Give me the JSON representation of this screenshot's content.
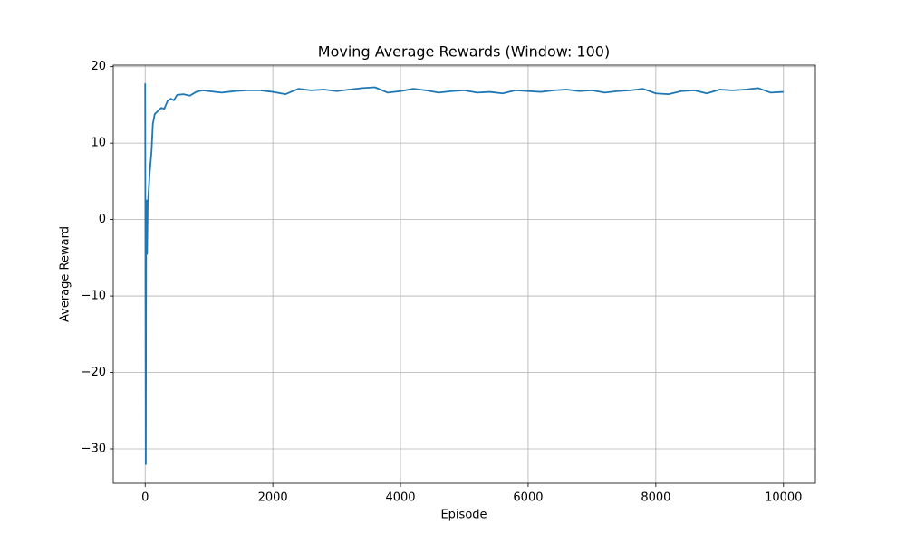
{
  "chart_data": {
    "type": "line",
    "title": "Moving Average Rewards (Window: 100)",
    "x_label": "Episode",
    "y_label": "Average Reward",
    "xlim": [
      -500,
      10500
    ],
    "ylim": [
      -34.5,
      20.2
    ],
    "xticks": [
      0,
      2000,
      4000,
      6000,
      8000,
      10000
    ],
    "yticks": [
      {
        "value": -30,
        "label": "−30"
      },
      {
        "value": -20,
        "label": "−20"
      },
      {
        "value": -10,
        "label": "−10"
      },
      0,
      10,
      20
    ],
    "grid": true,
    "series": [
      {
        "color": "#1f77b4",
        "x": [
          0,
          5,
          10,
          15,
          20,
          25,
          30,
          40,
          50,
          70,
          100,
          120,
          150,
          200,
          250,
          300,
          350,
          400,
          450,
          500,
          600,
          700,
          800,
          900,
          1000,
          1200,
          1400,
          1600,
          1800,
          2000,
          2200,
          2400,
          2600,
          2800,
          3000,
          3200,
          3400,
          3600,
          3800,
          4000,
          4200,
          4400,
          4600,
          4800,
          5000,
          5200,
          5400,
          5600,
          5800,
          6000,
          6200,
          6400,
          6600,
          6800,
          7000,
          7200,
          7400,
          7600,
          7800,
          8000,
          8200,
          8400,
          8600,
          8800,
          9000,
          9200,
          9400,
          9600,
          9800,
          10000
        ],
        "values": [
          17.8,
          -10,
          -32,
          -5,
          2.5,
          0,
          -4.5,
          2,
          3,
          6,
          9,
          12.5,
          13.8,
          14.2,
          14.6,
          14.5,
          15.5,
          15.8,
          15.6,
          16.3,
          16.4,
          16.2,
          16.7,
          16.9,
          16.8,
          16.6,
          16.8,
          16.9,
          16.9,
          16.7,
          16.4,
          17.1,
          16.9,
          17.0,
          16.8,
          17.0,
          17.2,
          17.3,
          16.6,
          16.8,
          17.1,
          16.9,
          16.6,
          16.8,
          16.9,
          16.6,
          16.7,
          16.5,
          16.9,
          16.8,
          16.7,
          16.9,
          17.0,
          16.8,
          16.9,
          16.6,
          16.8,
          16.9,
          17.1,
          16.5,
          16.4,
          16.8,
          16.9,
          16.5,
          17.0,
          16.9,
          17.0,
          17.2,
          16.6,
          16.7
        ]
      }
    ]
  }
}
